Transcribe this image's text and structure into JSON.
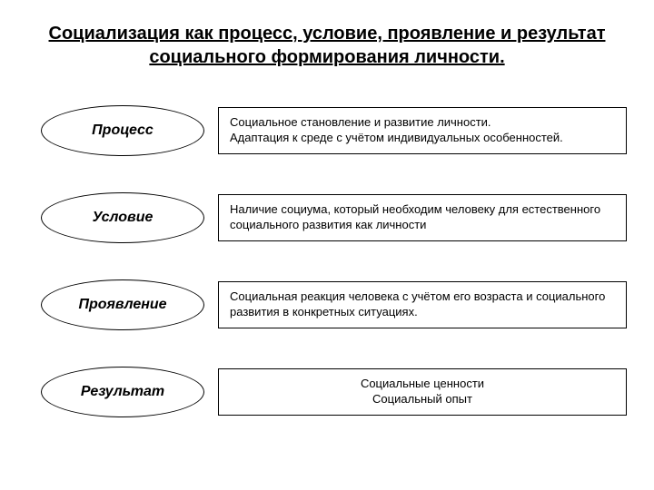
{
  "title": "Социализация как процесс, условие, проявление и результат социального формирования личности.",
  "rows": [
    {
      "label": "Процесс",
      "desc": "Социальное становление и развитие личности.\nАдаптация к среде с учётом индивидуальных особенностей.",
      "align": "left"
    },
    {
      "label": "Условие",
      "desc": "Наличие социума, который необходим человеку для естественного социального развития как личности",
      "align": "left"
    },
    {
      "label": "Проявление",
      "desc": "Социальная реакция человека с учётом его возраста и социального развития в конкретных ситуациях.",
      "align": "left"
    },
    {
      "label": "Результат",
      "desc": "Социальные ценности\nСоциальный опыт",
      "align": "center"
    }
  ],
  "style": {
    "type": "infographic",
    "background_color": "#ffffff",
    "text_color": "#000000",
    "border_color": "#000000",
    "title_fontsize": 20,
    "title_fontweight": "bold",
    "title_underline": true,
    "ellipse_width": 180,
    "ellipse_height": 56,
    "ellipse_border_width": 1,
    "ellipse_font_style": "italic",
    "ellipse_font_weight": "bold",
    "ellipse_fontsize": 16,
    "rect_border_width": 1,
    "rect_fontsize": 13,
    "row_gap": 40,
    "font_family": "Arial"
  }
}
